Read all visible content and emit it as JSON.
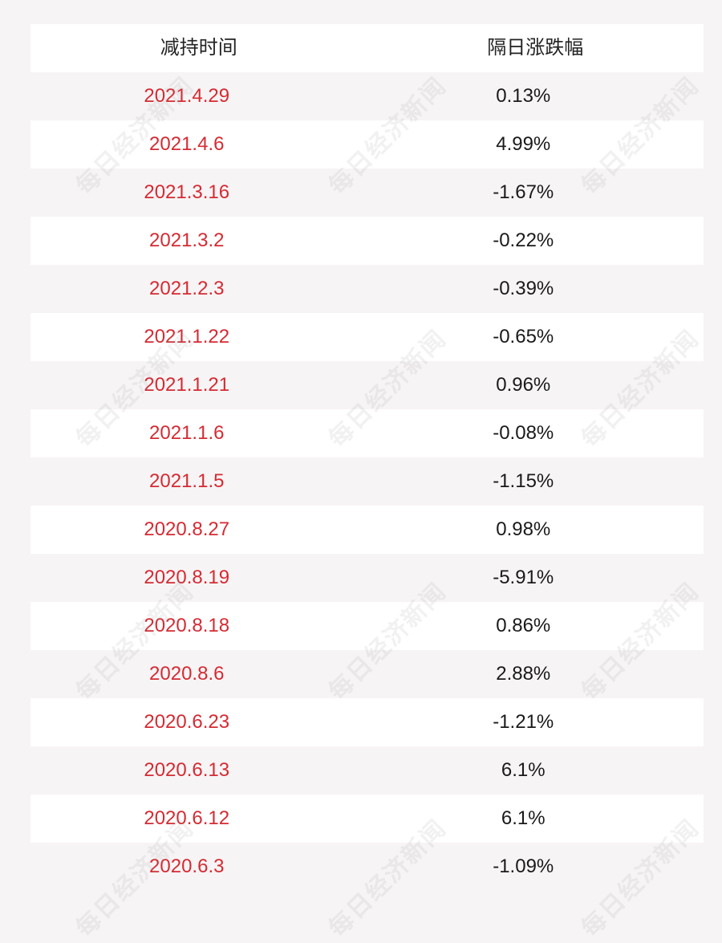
{
  "header": {
    "col1": "减持时间",
    "col2": "隔日涨跌幅"
  },
  "rows": [
    {
      "date": "2021.4.29",
      "change": "0.13%"
    },
    {
      "date": "2021.4.6",
      "change": "4.99%"
    },
    {
      "date": "2021.3.16",
      "change": "-1.67%"
    },
    {
      "date": "2021.3.2",
      "change": "-0.22%"
    },
    {
      "date": "2021.2.3",
      "change": "-0.39%"
    },
    {
      "date": "2021.1.22",
      "change": "-0.65%"
    },
    {
      "date": "2021.1.21",
      "change": "0.96%"
    },
    {
      "date": "2021.1.6",
      "change": "-0.08%"
    },
    {
      "date": "2021.1.5",
      "change": "-1.15%"
    },
    {
      "date": "2020.8.27",
      "change": "0.98%"
    },
    {
      "date": "2020.8.19",
      "change": "-5.91%"
    },
    {
      "date": "2020.8.18",
      "change": "0.86%"
    },
    {
      "date": "2020.8.6",
      "change": "2.88%"
    },
    {
      "date": "2020.6.23",
      "change": "-1.21%"
    },
    {
      "date": "2020.6.13",
      "change": "6.1%"
    },
    {
      "date": "2020.6.12",
      "change": "6.1%"
    },
    {
      "date": "2020.6.3",
      "change": "-1.09%"
    }
  ],
  "watermark": "每日经济新闻",
  "colors": {
    "date_text": "#d52b33",
    "value_text": "#1a1a1a",
    "row_white": "#ffffff",
    "row_shade": "#f7f4f5"
  }
}
